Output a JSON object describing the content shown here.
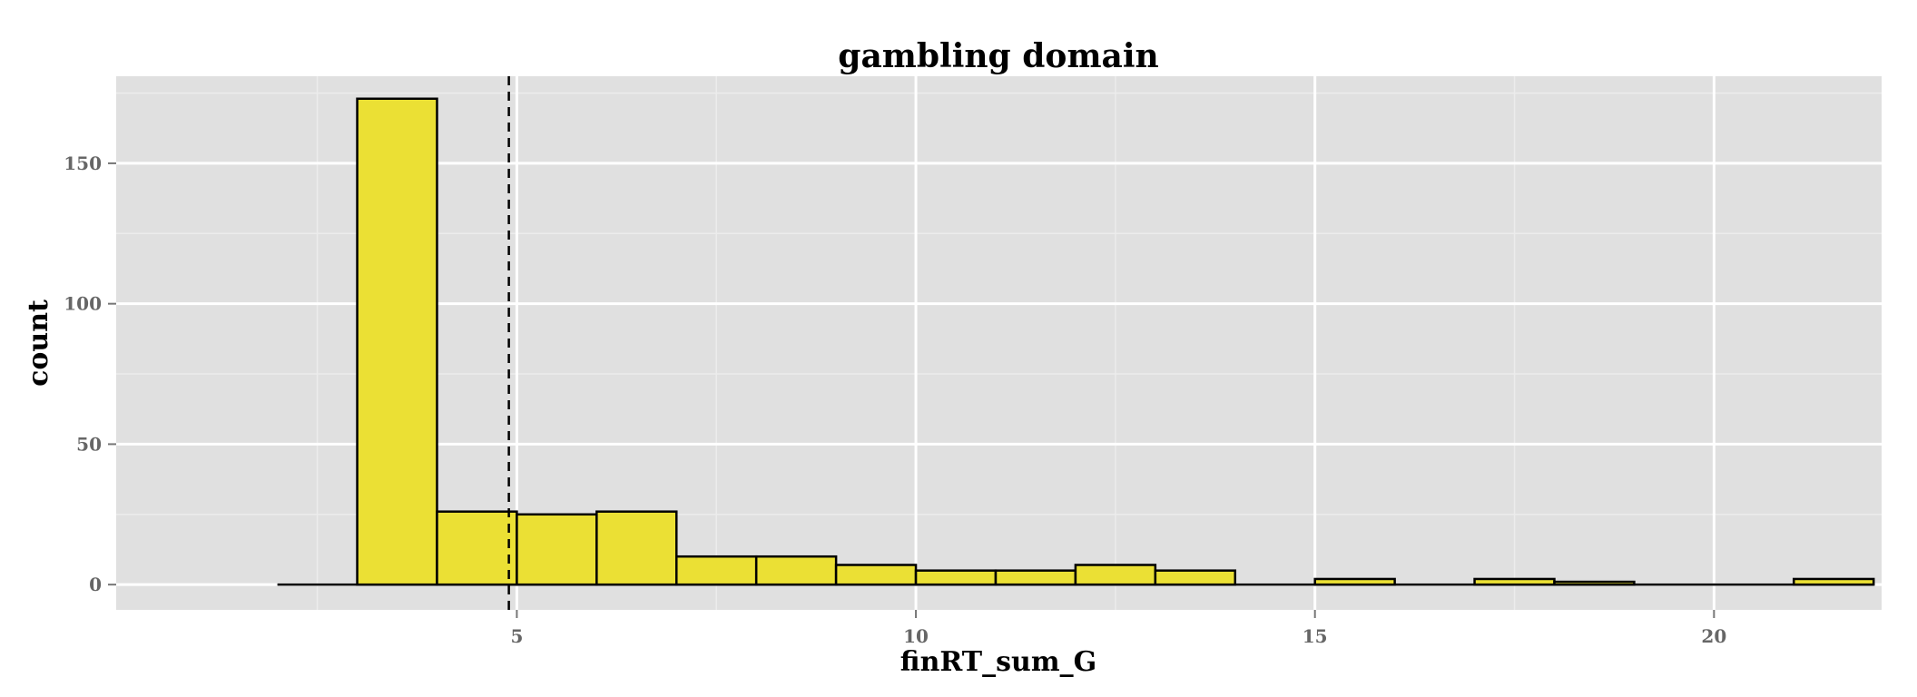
{
  "chart_data": {
    "type": "bar",
    "title": "gambling domain",
    "xlabel": "finRT_sum_G",
    "ylabel": "count",
    "xlim": [
      -0.02,
      22.1
    ],
    "ylim": [
      -9,
      181
    ],
    "x_ticks": [
      5,
      10,
      15,
      20
    ],
    "x_tick_labels": [
      "5",
      "10",
      "15",
      "20"
    ],
    "y_ticks": [
      0,
      50,
      100,
      150
    ],
    "y_tick_labels": [
      "0",
      "50",
      "100",
      "150"
    ],
    "bin_width": 1,
    "bins": [
      {
        "x0": 2,
        "x1": 3,
        "count": 0
      },
      {
        "x0": 3,
        "x1": 4,
        "count": 173
      },
      {
        "x0": 4,
        "x1": 5,
        "count": 26
      },
      {
        "x0": 5,
        "x1": 6,
        "count": 25
      },
      {
        "x0": 6,
        "x1": 7,
        "count": 26
      },
      {
        "x0": 7,
        "x1": 8,
        "count": 10
      },
      {
        "x0": 8,
        "x1": 9,
        "count": 10
      },
      {
        "x0": 9,
        "x1": 10,
        "count": 7
      },
      {
        "x0": 10,
        "x1": 11,
        "count": 5
      },
      {
        "x0": 11,
        "x1": 12,
        "count": 5
      },
      {
        "x0": 12,
        "x1": 13,
        "count": 7
      },
      {
        "x0": 13,
        "x1": 14,
        "count": 5
      },
      {
        "x0": 14,
        "x1": 15,
        "count": 0
      },
      {
        "x0": 15,
        "x1": 16,
        "count": 2
      },
      {
        "x0": 16,
        "x1": 17,
        "count": 0
      },
      {
        "x0": 17,
        "x1": 18,
        "count": 2
      },
      {
        "x0": 18,
        "x1": 19,
        "count": 1
      },
      {
        "x0": 19,
        "x1": 20,
        "count": 0
      },
      {
        "x0": 20,
        "x1": 21,
        "count": 0
      },
      {
        "x0": 21,
        "x1": 22,
        "count": 2
      }
    ],
    "vline_x": 4.9,
    "vline_style": "dashed",
    "grid": true,
    "colors": {
      "bar_fill": "#ebe034",
      "bar_stroke": "#000000",
      "panel_bg": "#e0e0e0",
      "grid_major": "#ffffff",
      "grid_minor": "#ececec",
      "tick_text": "#666666",
      "text": "#000000"
    }
  }
}
